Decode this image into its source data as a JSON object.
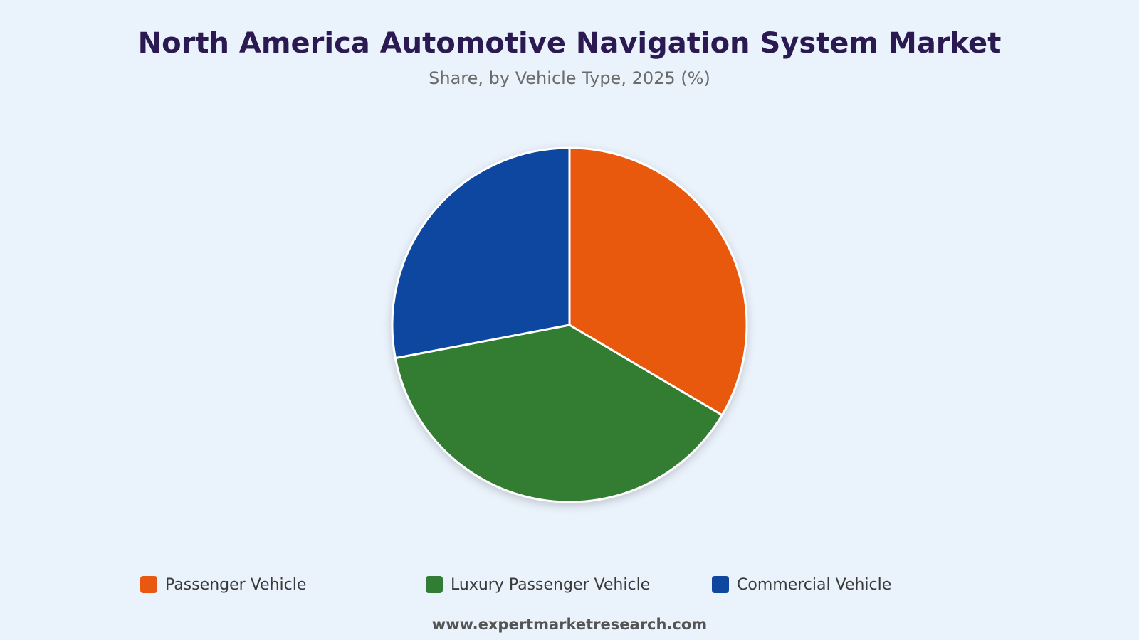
{
  "chart_data": {
    "type": "pie",
    "title": "North America Automotive Navigation System Market",
    "subtitle": "Share, by Vehicle Type, 2025 (%)",
    "series": [
      {
        "name": "Passenger Vehicle",
        "value": 33.5,
        "color": "#e85811"
      },
      {
        "name": "Luxury Passenger Vehicle",
        "value": 38.5,
        "color": "#307d33"
      },
      {
        "name": "Commercial Vehicle",
        "value": 28.0,
        "color": "#0e46a0"
      }
    ],
    "legend_placement": "bottom"
  },
  "footer": {
    "source": "www.expertmarketresearch.com"
  }
}
